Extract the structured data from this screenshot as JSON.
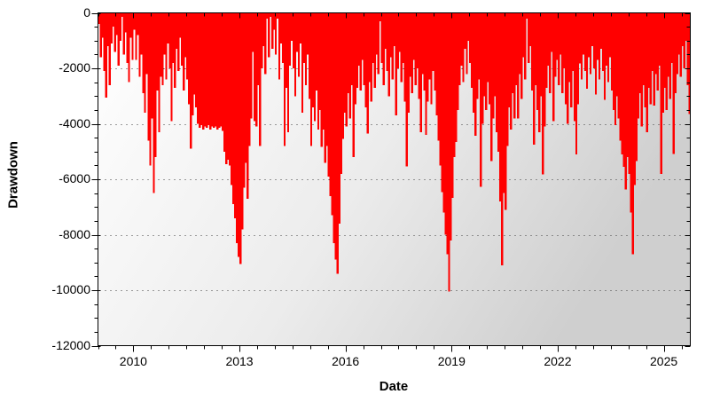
{
  "chart_data": {
    "type": "bar",
    "title": "",
    "xlabel": "Date",
    "ylabel": "Drawdown",
    "legend": "none",
    "grid": "horizontal dotted lines at major y ticks",
    "x_range": [
      2009.0,
      2025.75
    ],
    "ylim": [
      -12000,
      0
    ],
    "x_tick_values": [
      2010,
      2013,
      2016,
      2019,
      2022,
      2025
    ],
    "x_tick_labels": [
      "2010",
      "2013",
      "2016",
      "2019",
      "2022",
      "2025"
    ],
    "x_minor_step": 0.5,
    "y_tick_values": [
      0,
      -2000,
      -4000,
      -6000,
      -8000,
      -10000,
      -12000
    ],
    "y_tick_labels": [
      "0",
      "-2000",
      "-4000",
      "-6000",
      "-8000",
      "-10000",
      "-12000"
    ],
    "y_minor_step": 500,
    "series": [
      {
        "name": "Drawdown",
        "x_start": 2009.0,
        "x_step": 0.05,
        "values": [
          -400,
          -1600,
          -900,
          -2100,
          -3050,
          -1200,
          -2600,
          -1100,
          -500,
          -1400,
          -800,
          -1900,
          -1000,
          -150,
          -1500,
          -700,
          -1800,
          -2500,
          -900,
          -1700,
          -600,
          -1700,
          -800,
          -2300,
          -1500,
          -2900,
          -3600,
          -2200,
          -4600,
          -5500,
          -3800,
          -6500,
          -5200,
          -2800,
          -4300,
          -2300,
          -2600,
          -1500,
          -2400,
          -1100,
          -2000,
          -3900,
          -1800,
          -2700,
          -1300,
          -2100,
          -900,
          -1900,
          -2800,
          -1600,
          -2400,
          -3300,
          -4900,
          -3700,
          -2950,
          -3400,
          -4000,
          -4150,
          -4050,
          -4200,
          -4100,
          -4150,
          -4050,
          -4200,
          -4100,
          -4150,
          -4100,
          -4200,
          -4150,
          -4100,
          -4250,
          -5000,
          -5450,
          -5300,
          -5500,
          -6200,
          -6900,
          -7400,
          -8300,
          -8800,
          -9050,
          -7800,
          -6300,
          -5400,
          -6700,
          -4800,
          -3800,
          -1400,
          -3900,
          -4100,
          -2600,
          -4800,
          -2000,
          -1200,
          -2200,
          -200,
          -1600,
          -150,
          -1300,
          -600,
          -1500,
          -200,
          -2400,
          -1100,
          -1800,
          -4800,
          -2700,
          -4300,
          -1900,
          -1000,
          -2000,
          -3000,
          -1400,
          -2300,
          -1100,
          -3600,
          -1800,
          -2600,
          -1500,
          -3100,
          -4800,
          -3400,
          -3900,
          -2800,
          -4200,
          -3500,
          -4830,
          -4200,
          -5400,
          -4800,
          -5900,
          -6600,
          -7300,
          -8300,
          -8900,
          -9400,
          -7600,
          -5800,
          -4550,
          -3600,
          -4100,
          -2900,
          -3800,
          -2600,
          -5200,
          -3300,
          -2700,
          -1900,
          -2800,
          -1700,
          -2600,
          -3400,
          -4350,
          -2500,
          -3200,
          -1800,
          -2700,
          -1500,
          -2200,
          -300,
          -1800,
          -2600,
          -1300,
          -2100,
          -3000,
          -1600,
          -2400,
          -1200,
          -3700,
          -2000,
          -1400,
          -2500,
          -1800,
          -3200,
          -5530,
          -3600,
          -2300,
          -2900,
          -1700,
          -2600,
          -2000,
          -3100,
          -4300,
          -2200,
          -2800,
          -4400,
          -3200,
          -2400,
          -3300,
          -2100,
          -2800,
          -3700,
          -4600,
          -5500,
          -6470,
          -7200,
          -8000,
          -8700,
          -10050,
          -8200,
          -6670,
          -5200,
          -4650,
          -3500,
          -2600,
          -1900,
          -2500,
          -1300,
          -2200,
          -1000,
          -1800,
          -2700,
          -3600,
          -4430,
          -3100,
          -2400,
          -6270,
          -4000,
          -3000,
          -3500,
          -2500,
          -3300,
          -5350,
          -3800,
          -3000,
          -4300,
          -5000,
          -6800,
          -9100,
          -6500,
          -7100,
          -4800,
          -3400,
          -4200,
          -2900,
          -3800,
          -2600,
          -3800,
          -2200,
          -3100,
          -1600,
          -2400,
          -200,
          -1800,
          -1200,
          -2800,
          -4750,
          -2600,
          -3500,
          -4300,
          -3000,
          -5830,
          -4100,
          -2700,
          -1900,
          -2900,
          -1400,
          -3900,
          -2300,
          -1700,
          -2600,
          -1500,
          -2900,
          -2000,
          -3300,
          -4000,
          -2500,
          -3400,
          -2100,
          -3900,
          -5100,
          -3300,
          -1820,
          -2400,
          -1500,
          -2100,
          -2730,
          -1600,
          -2200,
          -1200,
          -2000,
          -2950,
          -1700,
          -2400,
          -1300,
          -2100,
          -3140,
          -1900,
          -2500,
          -1600,
          -2800,
          -3500,
          -4050,
          -3000,
          -3800,
          -4600,
          -5100,
          -5550,
          -6370,
          -5200,
          -5800,
          -7200,
          -8700,
          -6200,
          -5350,
          -3800,
          -2900,
          -4100,
          -2600,
          -3400,
          -4300,
          -2700,
          -3300,
          -2100,
          -3350,
          -2200,
          -2800,
          -1900,
          -5800,
          -3600,
          -2700,
          -3500,
          -2300,
          -3100,
          -1800,
          -5080,
          -2900,
          -2200,
          -1500,
          -2300,
          -1200,
          -2000,
          -1000,
          -2600,
          -3650
        ]
      }
    ]
  },
  "colors": {
    "bar": "#ff0000",
    "axis": "#000000",
    "grid_dot": "#3c3c3c",
    "label": "#000000",
    "bg_gradient_from": "#ffffff",
    "bg_gradient_mid": "#ececec",
    "bg_gradient_to": "#cfcfcf",
    "page_bg": "#ffffff"
  }
}
